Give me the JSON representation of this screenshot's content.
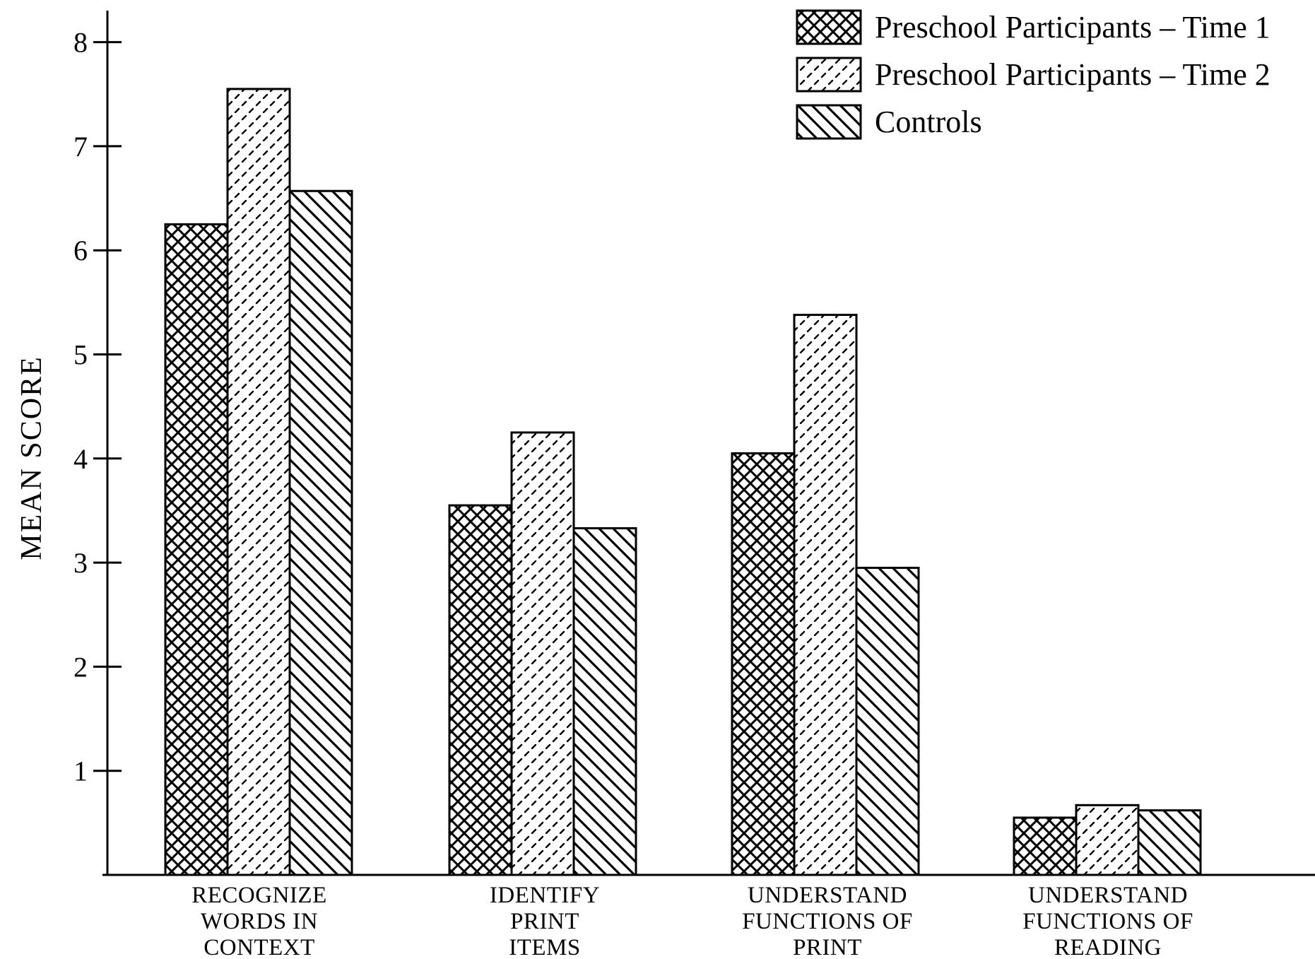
{
  "chart_data": {
    "type": "bar",
    "title": "",
    "xlabel": "",
    "ylabel": "MEAN SCORE",
    "ylim": [
      0,
      8.4
    ],
    "yticks": [
      "1",
      "2",
      "3",
      "4",
      "5",
      "6",
      "7",
      "8"
    ],
    "grid": false,
    "legend_position": "top-right",
    "categories": [
      [
        "RECOGNIZE",
        "WORDS IN",
        "CONTEXT"
      ],
      [
        "IDENTIFY",
        "PRINT",
        "ITEMS"
      ],
      [
        "UNDERSTAND",
        "FUNCTIONS OF",
        "PRINT"
      ],
      [
        "UNDERSTAND",
        "FUNCTIONS OF",
        "READING"
      ]
    ],
    "series": [
      {
        "name": "Preschool Participants – Time 1",
        "pattern": "crosshatch",
        "values": [
          6.25,
          3.55,
          4.05,
          0.55
        ]
      },
      {
        "name": "Preschool Participants – Time 2",
        "pattern": "dashed-dots",
        "values": [
          7.55,
          4.25,
          5.38,
          0.67
        ]
      },
      {
        "name": "Controls",
        "pattern": "diagonal-hatch",
        "values": [
          6.57,
          3.33,
          2.95,
          0.62
        ]
      }
    ]
  }
}
